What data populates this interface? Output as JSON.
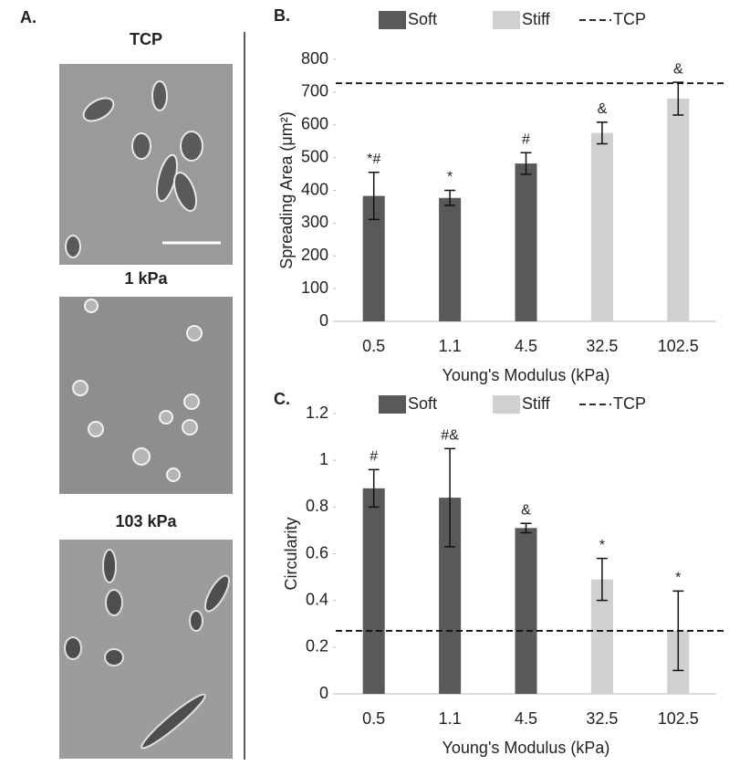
{
  "panel_a": {
    "label": "A.",
    "images": [
      "TCP",
      "1 kPa",
      "103 kPa"
    ]
  },
  "chart_data": [
    {
      "type": "bar",
      "label": "B.",
      "ylabel": "Spreading Area (μm²)",
      "xlabel": "Young's Modulus (kPa)",
      "categories": [
        "0.5",
        "1.1",
        "4.5",
        "32.5",
        "102.5"
      ],
      "series": [
        {
          "name": "Soft",
          "color": "#595959",
          "values": [
            383,
            377,
            482,
            null,
            null
          ],
          "errors": [
            72,
            23,
            33,
            null,
            null
          ]
        },
        {
          "name": "Stiff",
          "color": "#d0d0d0",
          "values": [
            null,
            null,
            null,
            575,
            680
          ],
          "errors": [
            null,
            null,
            null,
            33,
            50
          ]
        }
      ],
      "bar_labels": [
        "*#",
        "*",
        "#",
        "&",
        "&"
      ],
      "reference_line": {
        "name": "TCP",
        "value": 727
      },
      "ylim": [
        0,
        800
      ],
      "yticks": [
        0,
        100,
        200,
        300,
        400,
        500,
        600,
        700,
        800
      ]
    },
    {
      "type": "bar",
      "label": "C.",
      "ylabel": "Circularity",
      "xlabel": "Young's Modulus (kPa)",
      "categories": [
        "0.5",
        "1.1",
        "4.5",
        "32.5",
        "102.5"
      ],
      "series": [
        {
          "name": "Soft",
          "color": "#595959",
          "values": [
            0.88,
            0.84,
            0.71,
            null,
            null
          ],
          "errors": [
            0.08,
            0.21,
            0.02,
            null,
            null
          ]
        },
        {
          "name": "Stiff",
          "color": "#d0d0d0",
          "values": [
            null,
            null,
            null,
            0.49,
            0.27
          ],
          "errors": [
            null,
            null,
            null,
            0.09,
            0.17
          ]
        }
      ],
      "bar_labels": [
        "#",
        "#&",
        "&",
        "*",
        "*"
      ],
      "reference_line": {
        "name": "TCP",
        "value": 0.27
      },
      "ylim": [
        0,
        1.2
      ],
      "yticks": [
        0,
        0.2,
        0.4,
        0.6,
        0.8,
        1,
        1.2
      ]
    }
  ]
}
